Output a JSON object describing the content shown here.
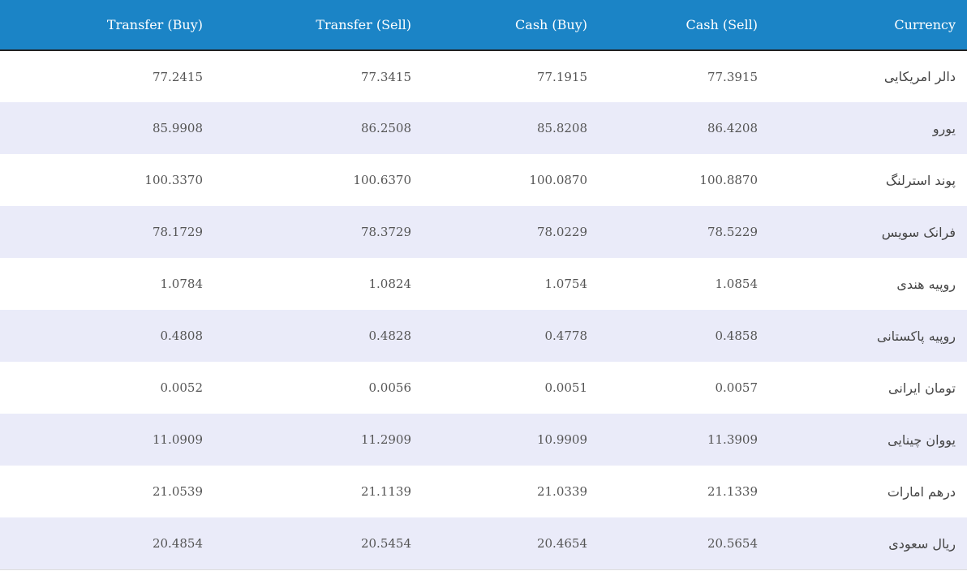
{
  "table": {
    "headers": {
      "transfer_buy": "Transfer (Buy)",
      "transfer_sell": "Transfer (Sell)",
      "cash_buy": "Cash (Buy)",
      "cash_sell": "Cash (Sell)",
      "currency": "Currency"
    },
    "rows": [
      {
        "currency": "دالر امریکایی",
        "transfer_buy": "77.2415",
        "transfer_sell": "77.3415",
        "cash_buy": "77.1915",
        "cash_sell": "77.3915"
      },
      {
        "currency": "یورو",
        "transfer_buy": "85.9908",
        "transfer_sell": "86.2508",
        "cash_buy": "85.8208",
        "cash_sell": "86.4208"
      },
      {
        "currency": "پوند استرلنگ",
        "transfer_buy": "100.3370",
        "transfer_sell": "100.6370",
        "cash_buy": "100.0870",
        "cash_sell": "100.8870"
      },
      {
        "currency": "فرانک سویس",
        "transfer_buy": "78.1729",
        "transfer_sell": "78.3729",
        "cash_buy": "78.0229",
        "cash_sell": "78.5229"
      },
      {
        "currency": "روپیه هندی",
        "transfer_buy": "1.0784",
        "transfer_sell": "1.0824",
        "cash_buy": "1.0754",
        "cash_sell": "1.0854"
      },
      {
        "currency": "روپیه پاکستانی",
        "transfer_buy": "0.4808",
        "transfer_sell": "0.4828",
        "cash_buy": "0.4778",
        "cash_sell": "0.4858"
      },
      {
        "currency": "تومان ایرانی",
        "transfer_buy": "0.0052",
        "transfer_sell": "0.0056",
        "cash_buy": "0.0051",
        "cash_sell": "0.0057"
      },
      {
        "currency": "یووان چینایی",
        "transfer_buy": "11.0909",
        "transfer_sell": "11.2909",
        "cash_buy": "10.9909",
        "cash_sell": "11.3909"
      },
      {
        "currency": "درهم امارات",
        "transfer_buy": "21.0539",
        "transfer_sell": "21.1139",
        "cash_buy": "21.0339",
        "cash_sell": "21.1339"
      },
      {
        "currency": "ریال سعودی",
        "transfer_buy": "20.4854",
        "transfer_sell": "20.5454",
        "cash_buy": "20.4654",
        "cash_sell": "20.5654"
      }
    ]
  },
  "colors": {
    "header_bg": "#1b84c6",
    "row_alt_bg": "#eaebf9"
  }
}
